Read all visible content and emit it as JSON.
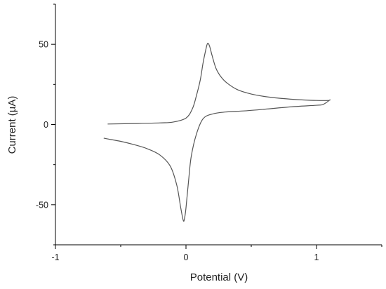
{
  "chart_data": {
    "type": "line",
    "title": "",
    "xlabel": "Potential (V)",
    "ylabel": "Current (µA)",
    "xlim": [
      -1,
      1.5
    ],
    "ylim": [
      -75,
      75
    ],
    "xticks": [
      -1,
      0,
      1
    ],
    "xtick_labels": [
      "-1",
      "0",
      "1"
    ],
    "yticks": [
      -50,
      0,
      50
    ],
    "ytick_labels": [
      "-50",
      "0",
      "50"
    ],
    "grid": false,
    "legend": "none",
    "line_color": "#555555",
    "series": [
      {
        "x": [
          -0.6,
          -0.4,
          -0.2,
          -0.1,
          0.0,
          0.05,
          0.08,
          0.11,
          0.13,
          0.15,
          0.165,
          0.18,
          0.2,
          0.23,
          0.27,
          0.32,
          0.4,
          0.5,
          0.6,
          0.7,
          0.8,
          0.9,
          1.0,
          1.09,
          1.1,
          1.05,
          1.0,
          0.8,
          0.6,
          0.45,
          0.3,
          0.2,
          0.13,
          0.08,
          0.04,
          0.02,
          0.0,
          -0.01,
          -0.02,
          -0.04,
          -0.07,
          -0.12,
          -0.2,
          -0.3,
          -0.4,
          -0.5,
          -0.6,
          -0.63
        ],
        "y": [
          0.3,
          0.6,
          1.0,
          1.5,
          4.0,
          10.0,
          18.0,
          28.0,
          38.0,
          46.0,
          50.5,
          49.0,
          43.0,
          35.0,
          29.5,
          25.5,
          21.5,
          19.0,
          17.5,
          16.5,
          15.8,
          15.3,
          15.0,
          15.0,
          15.2,
          12.5,
          12.0,
          11.0,
          9.5,
          8.5,
          7.8,
          6.5,
          3.5,
          -6.0,
          -20.0,
          -35.0,
          -52.0,
          -58.0,
          -60.0,
          -52.0,
          -38.0,
          -26.0,
          -19.0,
          -15.0,
          -12.5,
          -10.5,
          -9.0,
          -8.5
        ]
      }
    ]
  }
}
